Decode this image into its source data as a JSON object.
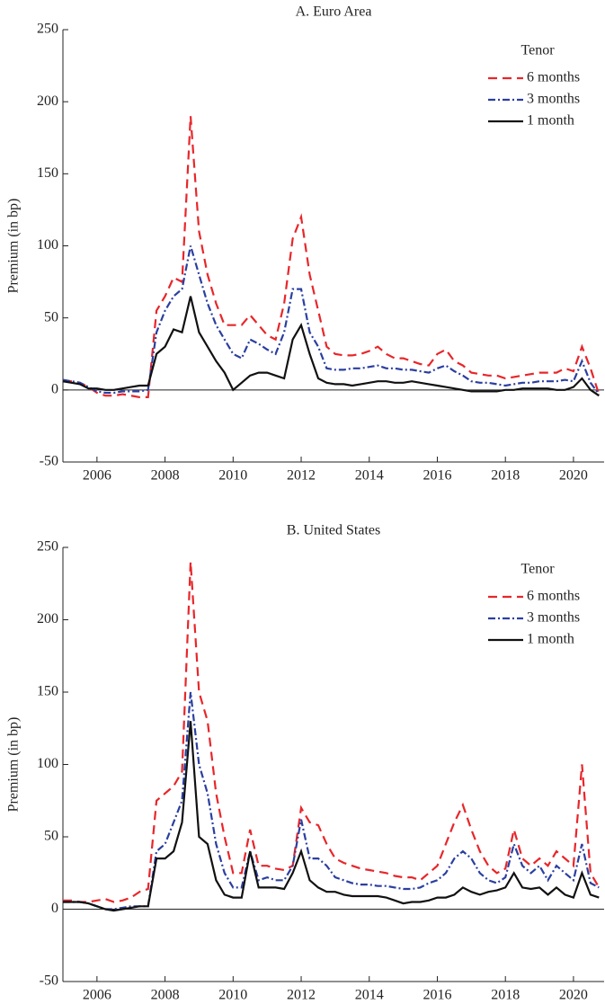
{
  "chart_data": [
    {
      "type": "line",
      "title": "A. Euro Area",
      "y_label": "Premium (in bp)",
      "legend_title": "Tenor",
      "legend": "upper-right",
      "x": [
        2005,
        2005.25,
        2005.5,
        2005.75,
        2006,
        2006.25,
        2006.5,
        2006.75,
        2007,
        2007.25,
        2007.5,
        2007.75,
        2008,
        2008.25,
        2008.5,
        2008.75,
        2009,
        2009.25,
        2009.5,
        2009.75,
        2010,
        2010.25,
        2010.5,
        2010.75,
        2011,
        2011.25,
        2011.5,
        2011.75,
        2012,
        2012.25,
        2012.5,
        2012.75,
        2013,
        2013.25,
        2013.5,
        2013.75,
        2014,
        2014.25,
        2014.5,
        2014.75,
        2015,
        2015.25,
        2015.5,
        2015.75,
        2016,
        2016.25,
        2016.5,
        2016.75,
        2017,
        2017.25,
        2017.5,
        2017.75,
        2018,
        2018.25,
        2018.5,
        2018.75,
        2019,
        2019.25,
        2019.5,
        2019.75,
        2020,
        2020.25,
        2020.5,
        2020.75
      ],
      "xlim": [
        2005,
        2020.9
      ],
      "xticks": [
        2006,
        2008,
        2010,
        2012,
        2014,
        2016,
        2018,
        2020
      ],
      "ylim": [
        -50,
        250
      ],
      "yticks": [
        -50,
        0,
        50,
        100,
        150,
        200,
        250
      ],
      "series": [
        {
          "name": "6 months",
          "color": "#e8262a",
          "values": [
            6,
            6,
            5,
            2,
            -2,
            -4,
            -4,
            -3,
            -4,
            -5,
            -5,
            55,
            65,
            78,
            75,
            190,
            110,
            80,
            60,
            45,
            45,
            45,
            52,
            45,
            38,
            35,
            60,
            105,
            120,
            80,
            55,
            30,
            25,
            24,
            24,
            25,
            27,
            30,
            25,
            22,
            22,
            20,
            18,
            17,
            25,
            28,
            20,
            17,
            12,
            11,
            10,
            10,
            8,
            9,
            10,
            11,
            12,
            12,
            12,
            15,
            13,
            30,
            15,
            -3
          ]
        },
        {
          "name": "3 months",
          "color": "#2b3fa0",
          "values": [
            7,
            6,
            5,
            2,
            -1,
            -2,
            -2,
            -1,
            -1,
            -1,
            0,
            40,
            55,
            65,
            70,
            100,
            80,
            60,
            45,
            35,
            25,
            22,
            35,
            32,
            28,
            25,
            40,
            70,
            70,
            40,
            30,
            15,
            14,
            14,
            15,
            15,
            16,
            17,
            15,
            15,
            14,
            14,
            13,
            12,
            15,
            17,
            13,
            10,
            6,
            5,
            5,
            4,
            3,
            4,
            5,
            5,
            6,
            6,
            6,
            7,
            6,
            20,
            5,
            -3
          ]
        },
        {
          "name": "1 month",
          "color": "#111111",
          "values": [
            6,
            5,
            4,
            1,
            1,
            0,
            0,
            1,
            2,
            3,
            3,
            25,
            30,
            42,
            40,
            65,
            40,
            30,
            20,
            12,
            0,
            5,
            10,
            12,
            12,
            10,
            8,
            35,
            45,
            25,
            8,
            5,
            4,
            4,
            3,
            4,
            5,
            6,
            6,
            5,
            5,
            6,
            5,
            4,
            3,
            2,
            1,
            0,
            -1,
            -1,
            -1,
            -1,
            0,
            0,
            1,
            1,
            1,
            1,
            0,
            0,
            2,
            8,
            0,
            -4
          ]
        }
      ]
    },
    {
      "type": "line",
      "title": "B. United States",
      "y_label": "Premium (in bp)",
      "legend_title": "Tenor",
      "legend": "upper-right",
      "x": [
        2005,
        2005.25,
        2005.5,
        2005.75,
        2006,
        2006.25,
        2006.5,
        2006.75,
        2007,
        2007.25,
        2007.5,
        2007.75,
        2008,
        2008.25,
        2008.5,
        2008.75,
        2009,
        2009.25,
        2009.5,
        2009.75,
        2010,
        2010.25,
        2010.5,
        2010.75,
        2011,
        2011.25,
        2011.5,
        2011.75,
        2012,
        2012.25,
        2012.5,
        2012.75,
        2013,
        2013.25,
        2013.5,
        2013.75,
        2014,
        2014.25,
        2014.5,
        2014.75,
        2015,
        2015.25,
        2015.5,
        2015.75,
        2016,
        2016.25,
        2016.5,
        2016.75,
        2017,
        2017.25,
        2017.5,
        2017.75,
        2018,
        2018.25,
        2018.5,
        2018.75,
        2019,
        2019.25,
        2019.5,
        2019.75,
        2020,
        2020.25,
        2020.5,
        2020.75
      ],
      "xlim": [
        2005,
        2020.9
      ],
      "xticks": [
        2006,
        2008,
        2010,
        2012,
        2014,
        2016,
        2018,
        2020
      ],
      "ylim": [
        -50,
        250
      ],
      "yticks": [
        -50,
        0,
        50,
        100,
        150,
        200,
        250
      ],
      "series": [
        {
          "name": "6 months",
          "color": "#e8262a",
          "values": [
            6,
            6,
            5,
            5,
            6,
            7,
            5,
            6,
            8,
            12,
            14,
            75,
            80,
            85,
            95,
            240,
            150,
            130,
            80,
            50,
            25,
            25,
            55,
            30,
            30,
            28,
            27,
            30,
            70,
            60,
            58,
            45,
            35,
            32,
            30,
            28,
            27,
            26,
            25,
            23,
            22,
            22,
            20,
            25,
            30,
            45,
            60,
            72,
            55,
            40,
            30,
            25,
            28,
            55,
            35,
            30,
            35,
            30,
            40,
            35,
            30,
            100,
            25,
            15
          ]
        },
        {
          "name": "3 months",
          "color": "#2b3fa0",
          "values": [
            5,
            5,
            5,
            4,
            2,
            0,
            0,
            1,
            2,
            2,
            2,
            40,
            45,
            60,
            75,
            150,
            100,
            80,
            45,
            25,
            15,
            15,
            40,
            20,
            22,
            20,
            20,
            30,
            62,
            35,
            35,
            30,
            22,
            20,
            18,
            17,
            17,
            16,
            16,
            15,
            14,
            14,
            15,
            18,
            20,
            25,
            35,
            40,
            35,
            25,
            20,
            18,
            22,
            45,
            30,
            25,
            30,
            20,
            30,
            25,
            20,
            45,
            18,
            15
          ]
        },
        {
          "name": "1 month",
          "color": "#111111",
          "values": [
            5,
            5,
            5,
            4,
            2,
            0,
            -1,
            0,
            1,
            2,
            2,
            35,
            35,
            40,
            60,
            130,
            50,
            45,
            20,
            10,
            8,
            8,
            40,
            15,
            15,
            15,
            14,
            25,
            40,
            20,
            15,
            12,
            12,
            10,
            9,
            9,
            9,
            9,
            8,
            6,
            4,
            5,
            5,
            6,
            8,
            8,
            10,
            15,
            12,
            10,
            12,
            13,
            15,
            25,
            15,
            14,
            15,
            10,
            15,
            10,
            8,
            25,
            10,
            8
          ]
        }
      ]
    }
  ]
}
